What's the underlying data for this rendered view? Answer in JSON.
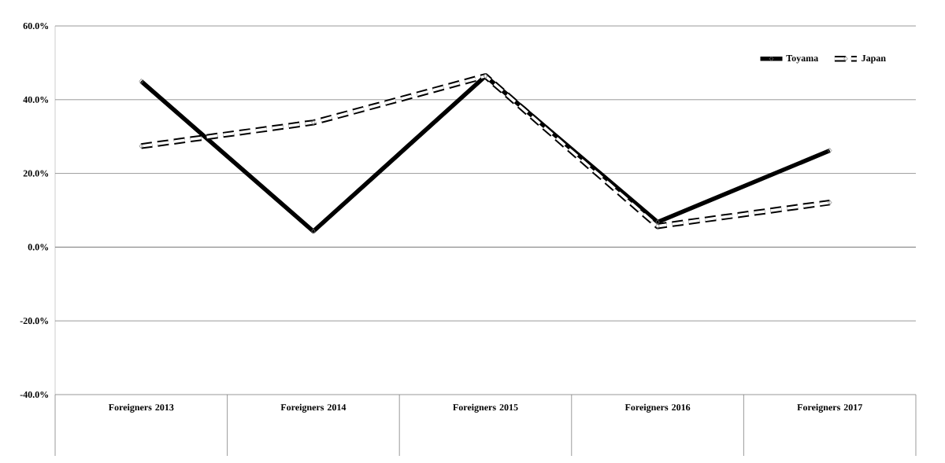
{
  "chart_data": {
    "type": "line",
    "categories": [
      "Foreigners 2013",
      "Foreigners 2014",
      "Foreigners 2015",
      "Foreigners 2016",
      "Foreigners 2017"
    ],
    "series": [
      {
        "name": "Toyama",
        "color": "#000000",
        "line_style": "solid",
        "values": [
          45.0,
          4.3,
          46.4,
          6.8,
          26.2
        ]
      },
      {
        "name": "Japan",
        "color": "#000000",
        "line_style": "dashed",
        "values": [
          27.4,
          33.8,
          46.4,
          5.7,
          12.1
        ]
      }
    ],
    "ylim": [
      -40,
      60
    ],
    "yticks": [
      {
        "value": -40,
        "label": "-40.0%"
      },
      {
        "value": -20,
        "label": "-20.0%"
      },
      {
        "value": 0,
        "label": "0.0%"
      },
      {
        "value": 20,
        "label": "20.0%"
      },
      {
        "value": 40,
        "label": "40.0%"
      },
      {
        "value": 60,
        "label": "60.0%"
      }
    ],
    "grid": "y",
    "legend": "top right",
    "marker": "diamond"
  }
}
